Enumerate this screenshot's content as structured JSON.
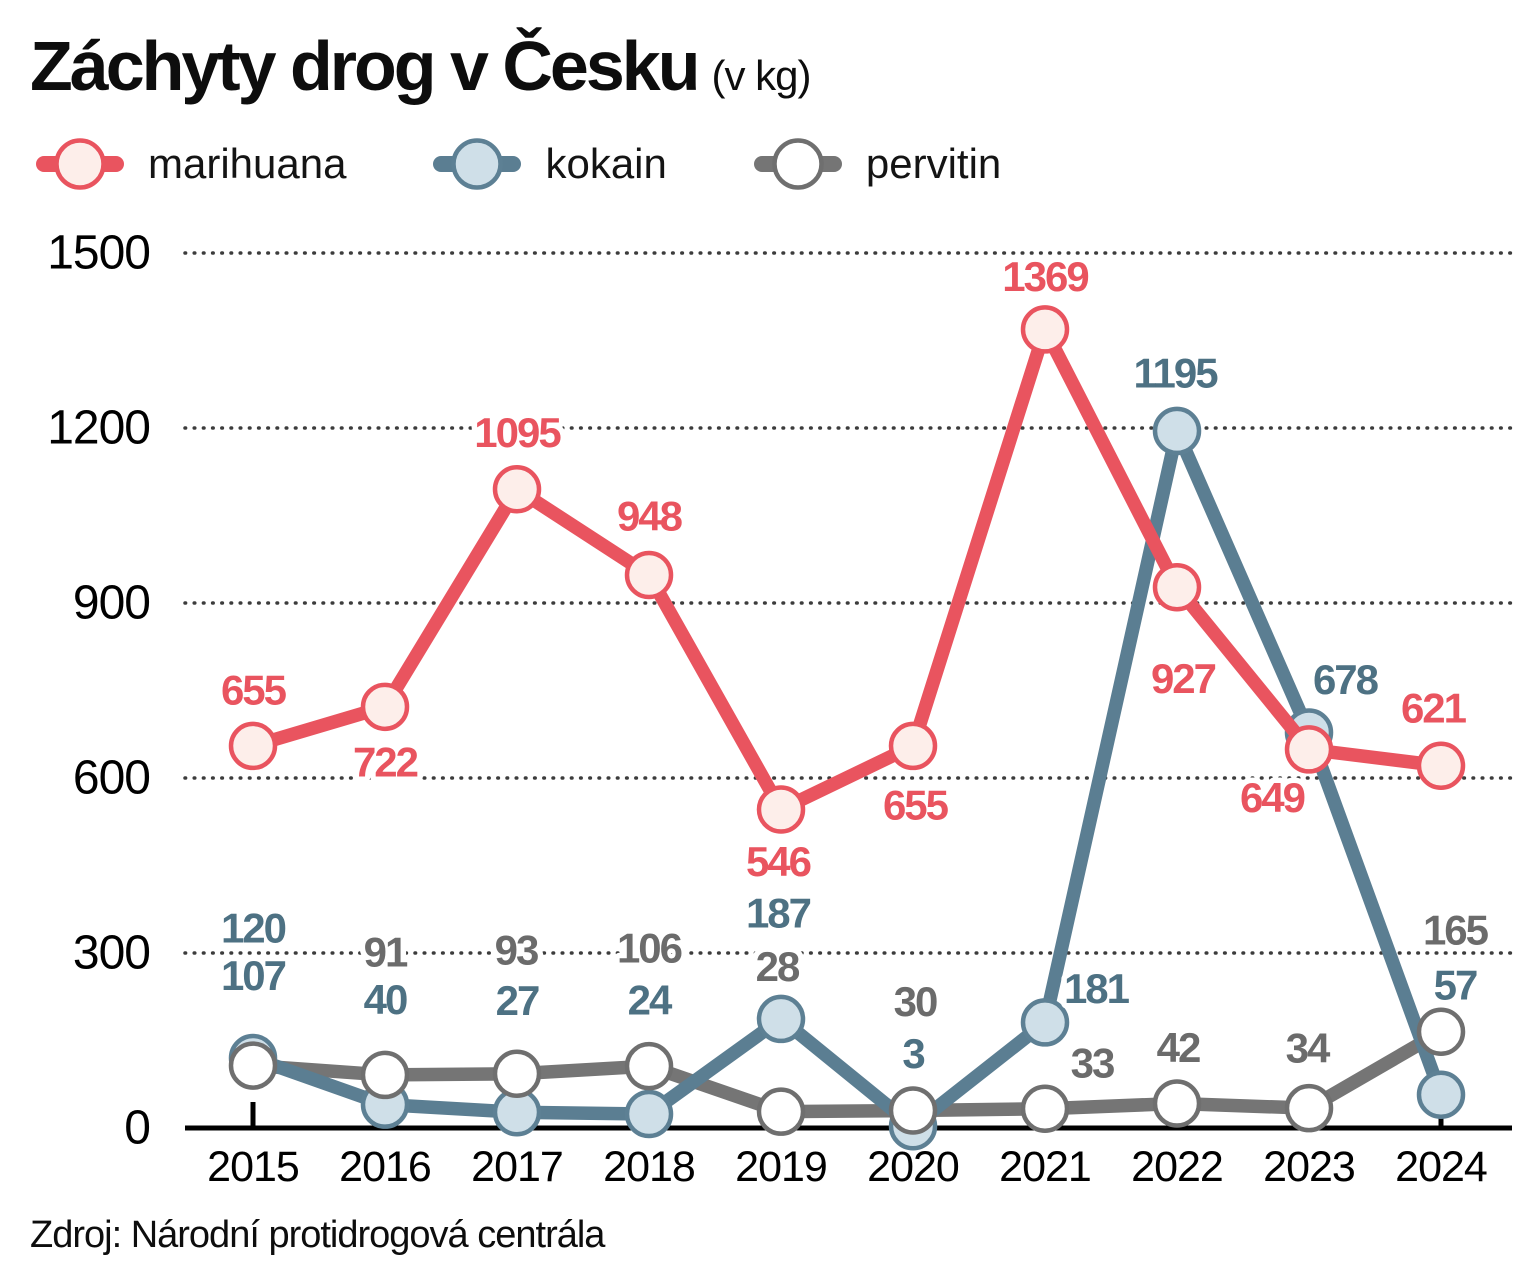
{
  "title": "Záchyty drog v Česku",
  "title_suffix": "(v kg)",
  "source": "Zdroj: Národní protidrogová centrála",
  "chart_data": {
    "type": "line",
    "x": [
      "2015",
      "2016",
      "2017",
      "2018",
      "2019",
      "2020",
      "2021",
      "2022",
      "2023",
      "2024"
    ],
    "yticks": [
      0,
      300,
      600,
      900,
      1200,
      1500
    ],
    "ylim": [
      0,
      1500
    ],
    "grid": "dotted-horizontal",
    "legend_position": "top-left",
    "axis_color": "#000000",
    "grid_color": "#3c3c3c",
    "series": [
      {
        "name": "marihuana",
        "values": [
          655,
          722,
          1095,
          948,
          546,
          655,
          1369,
          927,
          649,
          621
        ],
        "line_color": "#e9545f",
        "marker_fill": "#fdeeea",
        "marker_stroke": "#e9545f",
        "label_color": "#e9545f"
      },
      {
        "name": "kokain",
        "values": [
          120,
          40,
          27,
          24,
          187,
          3,
          181,
          1195,
          678,
          57
        ],
        "line_color": "#5b7e92",
        "marker_fill": "#cfdfe8",
        "marker_stroke": "#5d8094",
        "label_color": "#4d7183"
      },
      {
        "name": "pervitin",
        "values": [
          107,
          91,
          93,
          106,
          28,
          30,
          33,
          42,
          34,
          165
        ],
        "line_color": "#757575",
        "marker_fill": "#ffffff",
        "marker_stroke": "#6f6f6f",
        "label_color": "#6b6b6b",
        "label_color_overrides": {
          "0": "#4d7183"
        }
      }
    ]
  }
}
